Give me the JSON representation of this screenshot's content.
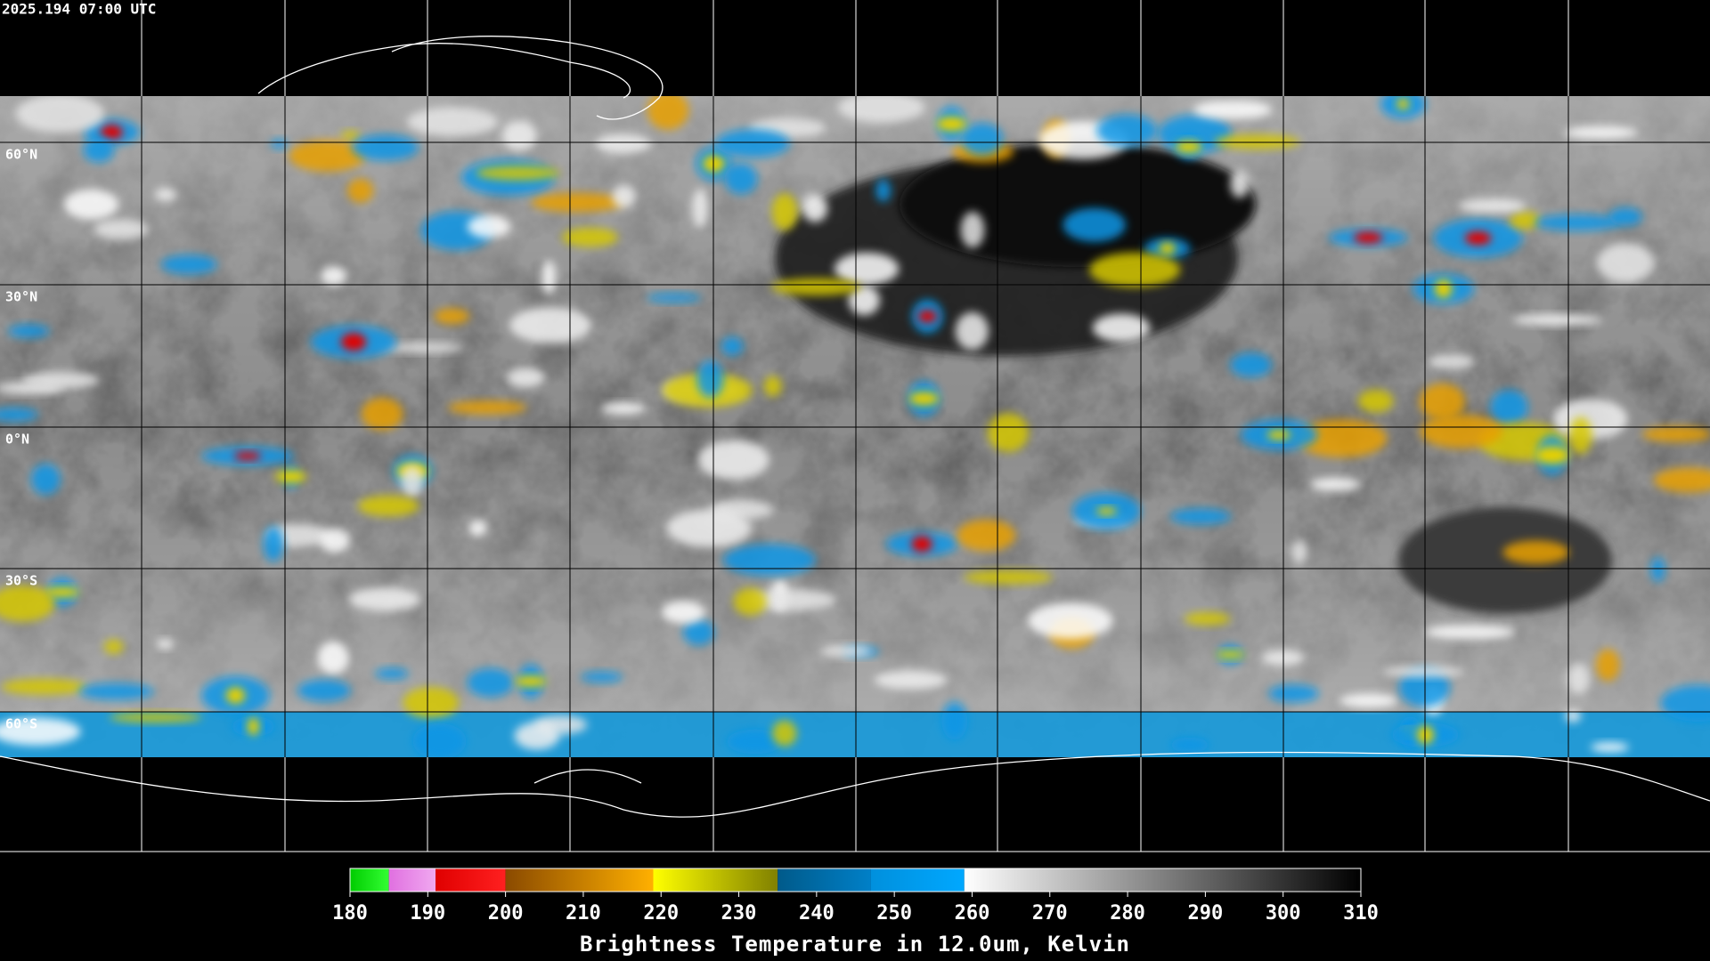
{
  "header": {
    "timestamp": "2025.194 07:00 UTC"
  },
  "map": {
    "latitude_labels": [
      "60°N",
      "30°N",
      "0°N",
      "30°S",
      "60°S"
    ]
  },
  "colorbar": {
    "title": "Brightness Temperature in 12.0um, Kelvin",
    "range": [
      180,
      310
    ],
    "ticks": [
      180,
      190,
      200,
      210,
      220,
      230,
      240,
      250,
      260,
      270,
      280,
      290,
      300,
      310
    ],
    "segments": [
      {
        "from": 180,
        "to": 185,
        "colors": [
          "#00cc00",
          "#33ff33"
        ]
      },
      {
        "from": 185,
        "to": 191,
        "colors": [
          "#e070e0",
          "#f0a8f0"
        ]
      },
      {
        "from": 191,
        "to": 200,
        "colors": [
          "#e00000",
          "#ff2020"
        ]
      },
      {
        "from": 200,
        "to": 219,
        "colors": [
          "#8a4a00",
          "#ffb000"
        ]
      },
      {
        "from": 219,
        "to": 235,
        "colors": [
          "#ffff00",
          "#808000"
        ]
      },
      {
        "from": 235,
        "to": 247,
        "colors": [
          "#005a8a",
          "#0080c8"
        ]
      },
      {
        "from": 247,
        "to": 259,
        "colors": [
          "#0090dd",
          "#00a8ff"
        ]
      },
      {
        "from": 259,
        "to": 310,
        "colors": [
          "#ffffff",
          "#000000"
        ]
      }
    ]
  }
}
